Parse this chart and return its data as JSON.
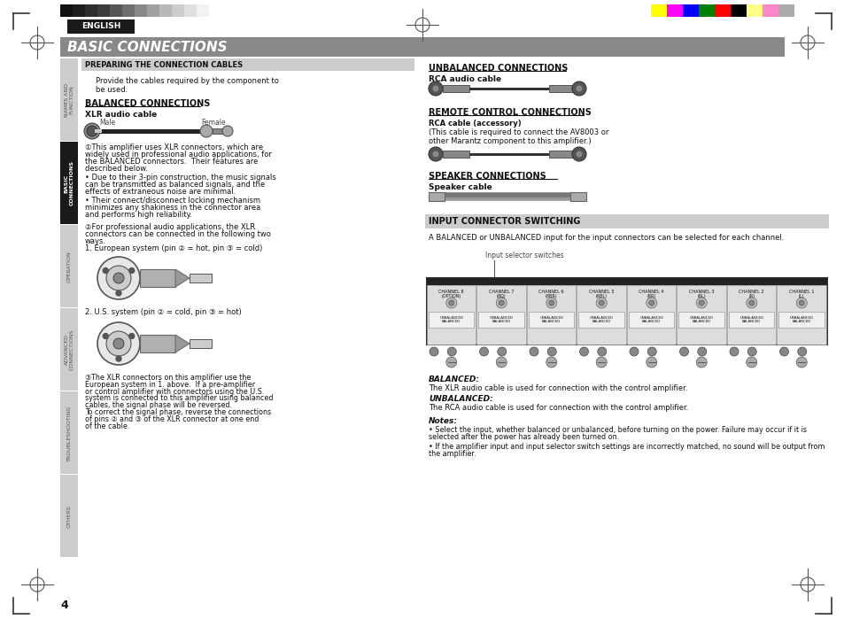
{
  "page_bg": "#ffffff",
  "title_text": "BASIC CONNECTIONS",
  "title_bg": "#888888",
  "title_color": "#ffffff",
  "english_bg": "#1a1a1a",
  "english_color": "#ffffff",
  "prep_header": "PREPARING THE CONNECTION CABLES",
  "prep_header_bg": "#cccccc",
  "prep_intro": "Provide the cables required by the component to\nbe used.",
  "balanced_header": "BALANCED CONNECTIONS",
  "xlr_label": "XLR audio cable",
  "xlr_male": "Male",
  "xlr_female": "Female",
  "bal_text1_lines": [
    "①This amplifier uses XLR connectors, which are",
    "widely used in professional audio applications, for",
    "the BALANCED connectors.  Their features are",
    "described below."
  ],
  "bal_bullet1_lines": [
    "• Due to their 3-pin construction, the music signals",
    "can be transmitted as balanced signals, and the",
    "effects of extraneous noise are minimal."
  ],
  "bal_bullet2_lines": [
    "• Their connect/disconnect locking mechanism",
    "minimizes any shakiness in the connector area",
    "and performs high reliability."
  ],
  "bal_text2_lines": [
    "②For professional audio applications, the XLR",
    "connectors can be connected in the following two",
    "ways."
  ],
  "eu_system": "1. European system (pin ② = hot, pin ③ = cold)",
  "us_system": "2. U.S. system (pin ② = cold, pin ③ = hot)",
  "bal_text3_lines": [
    "③The XLR connectors on this amplifier use the",
    "European system in 1. above.  If a pre-amplifier",
    "or control amplifier with connectors using the U.S.",
    "system is connected to this amplifier using balanced",
    "cables, the signal phase will be reversed.",
    "To correct the signal phase, reverse the connections",
    "of pins ② and ③ of the XLR connector at one end",
    "of the cable."
  ],
  "unbalanced_header": "UNBALANCED CONNECTIONS",
  "rca_label": "RCA audio cable",
  "remote_header": "REMOTE CONTROL CONNECTIONS",
  "rca_accessory_label": "RCA cable (accessory)",
  "rca_accessory_desc": "(This cable is required to connect the AV8003 or\nother Marantz component to this amplifier.)",
  "speaker_header": "SPEAKER CONNECTIONS",
  "speaker_label": "Speaker cable",
  "input_header": "INPUT CONNECTOR SWITCHING",
  "input_desc": "A BALANCED or UNBALANCED input for the input connectors can be selected for each channel.",
  "input_switches_label": "Input selector switches",
  "balanced_note_header": "BALANCED:",
  "balanced_note_text": "The XLR audio cable is used for connection with the control amplifier.",
  "unbalanced_note_header": "UNBALANCED:",
  "unbalanced_note_text": "The RCA audio cable is used for connection with the control amplifier.",
  "notes_header": "Notes:",
  "notes_lines1": [
    "• Select the input, whether balanced or unbalanced, before turning on the power. Failure may occur if it is",
    "selected after the power has already been turned on."
  ],
  "notes_lines2": [
    "• If the amplifier input and input selector switch settings are incorrectly matched, no sound will be output from",
    "the amplifier."
  ],
  "page_number": "4",
  "color_bars_left": [
    "#111111",
    "#1e1e1e",
    "#2d2d2d",
    "#3c3c3c",
    "#555555",
    "#6e6e6e",
    "#888888",
    "#a0a0a0",
    "#b8b8b8",
    "#cccccc",
    "#e0e0e0",
    "#f2f2f2"
  ],
  "color_bars_right": [
    "#ffff00",
    "#ff00ff",
    "#0000ff",
    "#008000",
    "#ff0000",
    "#000000",
    "#ffff88",
    "#ff88cc",
    "#aaaaaa"
  ],
  "channel_labels": [
    "CHANNEL 8\n(OPTION)",
    "CHANNEL 7\n(8Ω)",
    "CHANNEL 6\n(8BR)",
    "CHANNEL 5\n(6BL)",
    "CHANNEL 4\n(6R)",
    "CHANNEL 3\n(6L)",
    "CHANNEL 2\n(R)",
    "CHANNEL 1\n(L)"
  ],
  "sidebar_labels": [
    "NAMES AND\nFUNCTION",
    "BASIC\nCONNECTIONS",
    "OPERATION",
    "ADVANCED\nCONNECTIONS",
    "TROUBLESHOOTING",
    "OTHERS"
  ],
  "sidebar_active": 1
}
